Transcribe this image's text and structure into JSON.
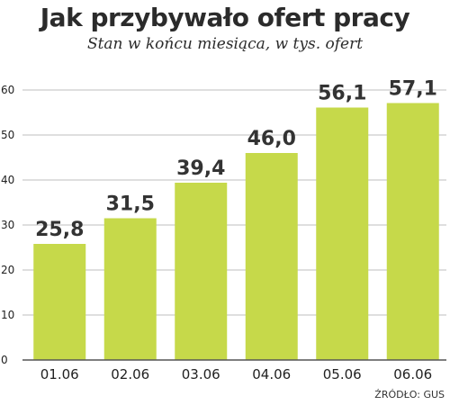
{
  "title": "Jak przybywało ofert pracy",
  "subtitle": "Stan w końcu miesiąca, w tys. ofert",
  "source": "ŹRÓDŁO: GUS",
  "colors": {
    "bar": "#c6d94a",
    "grid": "#bfbfbf",
    "axis": "#555555",
    "text": "#2b2b2b"
  },
  "chart_data": {
    "type": "bar",
    "title": "Jak przybywało ofert pracy",
    "subtitle": "Stan w końcu miesiąca, w tys. ofert",
    "categories": [
      "01.06",
      "02.06",
      "03.06",
      "04.06",
      "05.06",
      "06.06"
    ],
    "values": [
      25.8,
      31.5,
      39.4,
      46.0,
      56.1,
      57.1
    ],
    "value_labels": [
      "25,8",
      "31,5",
      "39,4",
      "46,0",
      "56,1",
      "57,1"
    ],
    "yticks": [
      0,
      10,
      20,
      30,
      40,
      50,
      60
    ],
    "ylim": [
      0,
      60
    ],
    "grid": true,
    "legend": "none"
  }
}
